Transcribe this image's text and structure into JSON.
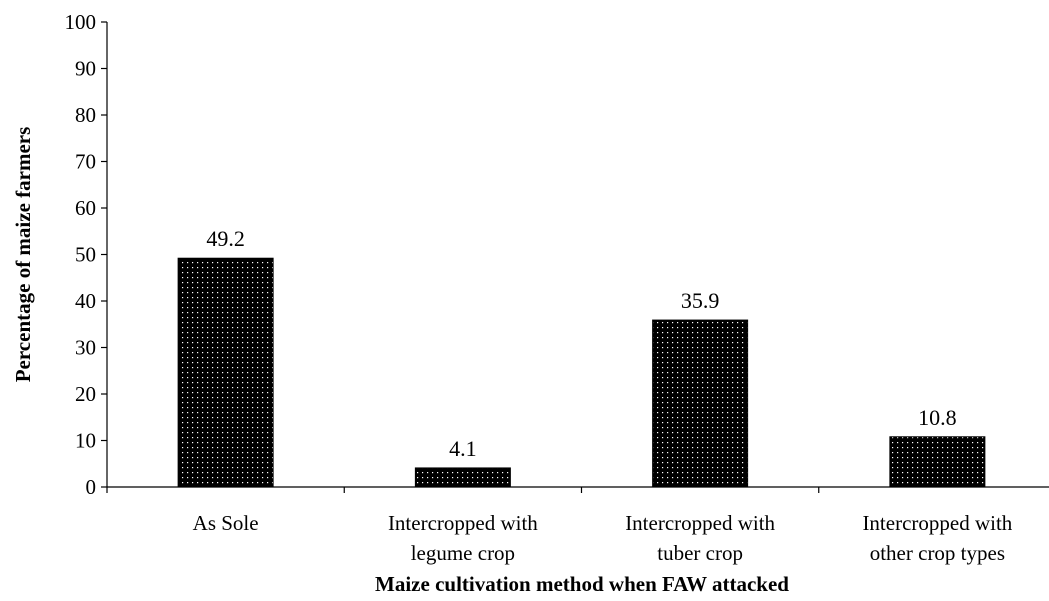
{
  "chart_data": {
    "type": "bar",
    "categories": [
      [
        "As Sole"
      ],
      [
        "Intercropped with",
        "legume crop"
      ],
      [
        "Intercropped with",
        "tuber crop"
      ],
      [
        "Intercropped with",
        "other crop types"
      ]
    ],
    "values": [
      49.2,
      4.1,
      35.9,
      10.8
    ],
    "data_labels": [
      "49.2",
      "4.1",
      "35.9",
      "10.8"
    ],
    "yticks": [
      "0",
      "10",
      "20",
      "30",
      "40",
      "50",
      "60",
      "70",
      "80",
      "90",
      "100"
    ],
    "ylim": [
      0,
      100
    ],
    "xlabel": "Maize cultivation method when FAW attacked",
    "ylabel": "Percentage of maize farmers",
    "grid": false,
    "legend": "none",
    "bar_fill": "dotted-black",
    "colors": {
      "bar": "#000000",
      "dot": "#ffffff"
    }
  }
}
